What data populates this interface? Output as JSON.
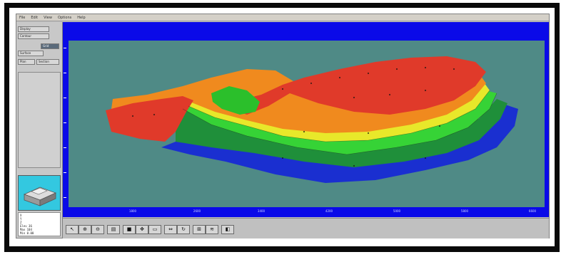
{
  "window": {
    "menu": [
      "File",
      "Edit",
      "View",
      "Options",
      "Help"
    ]
  },
  "left_panel": {
    "buttons": [
      {
        "label": "Display",
        "dark": false
      },
      {
        "label": "Contour",
        "dark": false
      },
      {
        "label": "Grid",
        "dark": true
      },
      {
        "label": "Surface",
        "dark": false
      },
      {
        "label": "Plan",
        "dark": false
      },
      {
        "label": "Section",
        "dark": false
      }
    ],
    "info_lines": [
      "X",
      "Y",
      "Z",
      "Elev   36",
      "Max  104",
      "Min  0.00"
    ]
  },
  "plot": {
    "x_tick_labels": [
      "1800",
      "2600",
      "3400",
      "4200",
      "5000",
      "5800",
      "6600"
    ]
  },
  "toolbar": {
    "tools": [
      {
        "icon": "pointer-icon",
        "glyph": "↖"
      },
      {
        "icon": "zoom-in-icon",
        "glyph": "⊕"
      },
      {
        "icon": "zoom-out-icon",
        "glyph": "⊖"
      },
      {
        "icon": "print-icon",
        "glyph": "▤"
      },
      {
        "icon": "fill-icon",
        "glyph": "■"
      },
      {
        "icon": "pan-icon",
        "glyph": "✥"
      },
      {
        "icon": "select-icon",
        "glyph": "▭"
      },
      {
        "icon": "measure-icon",
        "glyph": "⇔"
      },
      {
        "icon": "rotate-icon",
        "glyph": "↻"
      },
      {
        "icon": "section-icon",
        "glyph": "⊞"
      },
      {
        "icon": "contour-icon",
        "glyph": "≋"
      },
      {
        "icon": "view3d-icon",
        "glyph": "◧"
      }
    ]
  },
  "colors": {
    "background": "#4f8a86",
    "frame_blue": "#0a0ae8",
    "contour_low": "#1a2fd0",
    "contour_mid": "#2bbf2b",
    "contour_high": "#e03a2a"
  }
}
